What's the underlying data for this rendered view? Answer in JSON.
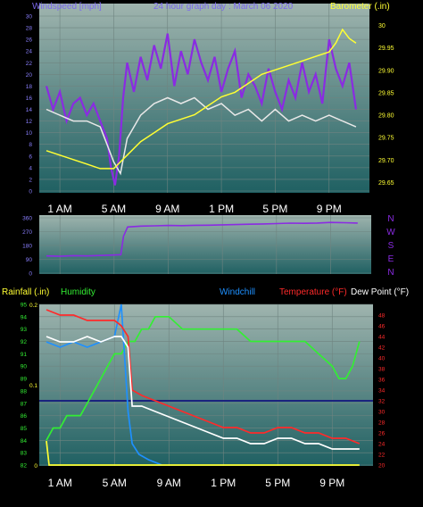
{
  "colors": {
    "background": "#000000",
    "plot_top": "#9fb4ae",
    "plot_bottom": "#1f6062",
    "gridline": "#6f8480",
    "axis_text": "#ffffff",
    "windspeed": "#8a2be2",
    "windspeed_avg": "#e8e8e8",
    "barometer": "#ffff33",
    "direction": "#8a2be2",
    "humidity": "#33ee33",
    "windchill": "#1e90ff",
    "temperature": "#ff2a2a",
    "dewpoint": "#ffffff",
    "rainfall": "#ffff33",
    "reference_line": "#1a237e",
    "windspeed_title": "#7b68ee",
    "bottom_left_label": "#ffff33"
  },
  "header": {
    "windspeed_label": "Windspeed [mph]",
    "title": "24 hour graph day : March 06 2020",
    "barometer_label": "Barometer (.in)"
  },
  "time_labels": [
    "1 AM",
    "5 AM",
    "9 AM",
    "1 PM",
    "5 PM",
    "9 PM"
  ],
  "direction_labels": [
    "N",
    "W",
    "S",
    "E",
    "N"
  ],
  "legend": {
    "rainfall": "Rainfall (.in)",
    "humidity": "Humidity",
    "windchill": "Windchill",
    "temperature": "Temperature (°F)",
    "dewpoint": "Dew Point (°F)"
  },
  "chart_data": [
    {
      "type": "line",
      "title": "24 hour graph day : March 06 2020",
      "x_unit": "hour of day",
      "x_ticks": [
        "1 AM",
        "5 AM",
        "9 AM",
        "1 PM",
        "5 PM",
        "9 PM"
      ],
      "y_left": {
        "label": "Windspeed [mph]",
        "ylim": [
          0,
          30
        ],
        "ticks": [
          0,
          2,
          4,
          6,
          8,
          10,
          12,
          14,
          16,
          18,
          20,
          22,
          24,
          26,
          28,
          30
        ]
      },
      "y_right": {
        "label": "Barometer (.in)",
        "ylim": [
          29.63,
          30.02
        ],
        "ticks": [
          29.65,
          29.7,
          29.75,
          29.8,
          29.85,
          29.9,
          29.95,
          30
        ]
      },
      "grid": true,
      "series": [
        {
          "axis": "left",
          "color": "windspeed",
          "x": [
            0,
            0.5,
            1,
            1.5,
            2,
            2.5,
            3,
            3.5,
            4,
            4.5,
            4.8,
            5.1,
            5.4,
            5.7,
            6,
            6.5,
            7,
            7.5,
            8,
            8.5,
            9,
            9.5,
            10,
            10.5,
            11,
            11.5,
            12,
            12.5,
            13,
            13.5,
            14,
            14.5,
            15,
            15.5,
            16,
            16.5,
            17,
            17.5,
            18,
            18.5,
            19,
            19.5,
            20,
            20.5,
            21,
            21.5,
            22,
            22.5,
            23
          ],
          "y": [
            18,
            14,
            17,
            12,
            15,
            16,
            13,
            15,
            12,
            9,
            4,
            1,
            6,
            16,
            22,
            17,
            23,
            19,
            25,
            21,
            27,
            18,
            24,
            20,
            26,
            22,
            19,
            23,
            17,
            21,
            24,
            16,
            20,
            18,
            15,
            21,
            17,
            14,
            19,
            16,
            22,
            17,
            20,
            15,
            26,
            21,
            18,
            22,
            14
          ]
        },
        {
          "axis": "left",
          "color": "windspeed_avg",
          "x": [
            0,
            1,
            2,
            3,
            4,
            4.5,
            5,
            5.5,
            6,
            7,
            8,
            9,
            10,
            11,
            12,
            13,
            14,
            15,
            16,
            17,
            18,
            19,
            20,
            21,
            22,
            23
          ],
          "y": [
            14,
            13,
            12,
            12,
            11,
            8,
            5,
            3,
            9,
            13,
            15,
            16,
            15,
            16,
            14,
            15,
            13,
            14,
            12,
            14,
            12,
            13,
            12,
            13,
            12,
            11
          ]
        },
        {
          "axis": "right",
          "color": "barometer",
          "x": [
            0,
            1,
            2,
            3,
            4,
            5,
            6,
            7,
            8,
            9,
            10,
            11,
            12,
            13,
            14,
            15,
            16,
            17,
            18,
            19,
            20,
            21,
            21.5,
            22,
            22.5,
            23
          ],
          "y": [
            29.72,
            29.71,
            29.7,
            29.69,
            29.68,
            29.68,
            29.71,
            29.74,
            29.76,
            29.78,
            29.79,
            29.8,
            29.82,
            29.84,
            29.85,
            29.87,
            29.89,
            29.9,
            29.91,
            29.92,
            29.93,
            29.94,
            29.96,
            29.99,
            29.97,
            29.96
          ]
        }
      ]
    },
    {
      "type": "line",
      "y_ticks": [
        0,
        90,
        180,
        270,
        360
      ],
      "ylim": [
        0,
        360
      ],
      "direction_labels": [
        "N",
        "W",
        "S",
        "E",
        "N"
      ],
      "grid": true,
      "series": [
        {
          "color": "direction",
          "x": [
            0,
            1,
            2,
            3,
            4,
            5,
            5.5,
            5.7,
            6,
            7,
            8,
            9,
            10,
            11,
            12,
            13,
            14,
            15,
            16,
            17,
            18,
            19,
            20,
            21,
            22,
            23
          ],
          "y": [
            112,
            110,
            114,
            112,
            115,
            118,
            120,
            240,
            300,
            306,
            308,
            310,
            309,
            311,
            312,
            314,
            316,
            318,
            320,
            322,
            325,
            324,
            326,
            330,
            328,
            326
          ]
        }
      ]
    },
    {
      "type": "line",
      "grid": true,
      "y_left_outer": {
        "label": "Rainfall (.in)",
        "ylim": [
          0,
          0.2
        ],
        "ticks": [
          0,
          0.1,
          0.2
        ]
      },
      "y_left_inner": {
        "label": "Humidity",
        "ylim": [
          82,
          95
        ],
        "ticks": [
          82,
          83,
          84,
          85,
          86,
          87,
          88,
          89,
          90,
          91,
          92,
          93,
          94,
          95
        ]
      },
      "y_right": {
        "label": "Temperature (°F)",
        "ylim": [
          20,
          50
        ],
        "ticks": [
          20,
          22,
          24,
          26,
          28,
          30,
          32,
          34,
          36,
          38,
          40,
          42,
          44,
          46,
          48
        ]
      },
      "reference_line_y": 32,
      "series": [
        {
          "name": "Humidity",
          "axis": "humidity",
          "color": "humidity",
          "x": [
            0,
            0.5,
            1,
            1.5,
            2,
            2.5,
            3,
            3.5,
            4,
            4.5,
            5,
            5.5,
            6,
            6.5,
            7,
            7.5,
            8,
            9,
            10,
            11,
            12,
            13,
            14,
            15,
            16,
            17,
            18,
            19,
            20,
            21,
            21.5,
            22,
            22.5,
            23
          ],
          "y": [
            84,
            85,
            85,
            86,
            86,
            86,
            87,
            88,
            89,
            90,
            91,
            91,
            92,
            92,
            93,
            93,
            94,
            94,
            93,
            93,
            93,
            93,
            93,
            92,
            92,
            92,
            92,
            92,
            91,
            90,
            89,
            89,
            90,
            92
          ]
        },
        {
          "name": "Windchill",
          "axis": "right",
          "color": "windchill",
          "x": [
            0,
            1,
            2,
            3,
            4,
            5,
            5.5,
            6,
            6.3,
            6.8,
            7.5,
            8.5
          ],
          "y": [
            43,
            42,
            43,
            42,
            43,
            44,
            50,
            30,
            24,
            22,
            21,
            20
          ]
        },
        {
          "name": "Temperature (°F)",
          "axis": "right",
          "color": "temperature",
          "x": [
            0,
            1,
            2,
            3,
            4,
            5,
            5.5,
            6,
            6.3,
            7,
            8,
            9,
            10,
            11,
            12,
            13,
            14,
            15,
            16,
            17,
            18,
            19,
            20,
            21,
            22,
            23
          ],
          "y": [
            49,
            48,
            48,
            47,
            47,
            47,
            46,
            44,
            34,
            33,
            32,
            31,
            30,
            29,
            28,
            27,
            27,
            26,
            26,
            27,
            27,
            26,
            26,
            25,
            25,
            24
          ]
        },
        {
          "name": "Dew Point (°F)",
          "axis": "right",
          "color": "dewpoint",
          "x": [
            0,
            1,
            2,
            3,
            4,
            5,
            5.5,
            6,
            6.3,
            7,
            8,
            9,
            10,
            11,
            12,
            13,
            14,
            15,
            16,
            17,
            18,
            19,
            20,
            21,
            22,
            23
          ],
          "y": [
            44,
            43,
            43,
            44,
            43,
            44,
            44,
            42,
            31,
            31,
            30,
            29,
            28,
            27,
            26,
            25,
            25,
            24,
            24,
            25,
            25,
            24,
            24,
            23,
            23,
            23
          ]
        },
        {
          "name": "Rainfall (.in)",
          "axis": "rain",
          "color": "rainfall",
          "x": [
            0,
            0.2,
            23
          ],
          "y": [
            0.03,
            0,
            0
          ]
        }
      ]
    }
  ]
}
